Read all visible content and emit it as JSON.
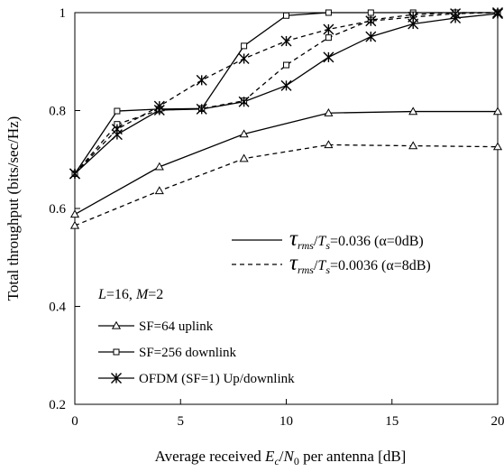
{
  "chart_data": {
    "type": "line",
    "title": "",
    "xlabel_parts": [
      "Average received ",
      "E",
      "c",
      "/",
      "N",
      "0",
      " per antenna [dB]"
    ],
    "ylabel": "Total throughput (bits/sec/Hz)",
    "xlim": [
      0,
      20
    ],
    "ylim": [
      0.2,
      1.0
    ],
    "xticks": [
      "0",
      "5",
      "10",
      "15",
      "20"
    ],
    "yticks": [
      "0.2",
      "0.4",
      "0.6",
      "0.8",
      "1"
    ],
    "grid": false,
    "series": [
      {
        "name": "SF=64 uplink",
        "style": "solid",
        "marker": "triangle",
        "x": [
          0,
          4,
          8,
          12,
          16,
          20
        ],
        "y": [
          0.588,
          0.685,
          0.752,
          0.795,
          0.798,
          0.798
        ]
      },
      {
        "name": "SF=64 uplink",
        "style": "dashed",
        "marker": "triangle",
        "x": [
          0,
          4,
          8,
          12,
          16,
          20
        ],
        "y": [
          0.565,
          0.636,
          0.702,
          0.73,
          0.728,
          0.726
        ]
      },
      {
        "name": "SF=256 downlink",
        "style": "solid",
        "marker": "square",
        "x": [
          0,
          2,
          4,
          6,
          8,
          10,
          12,
          14,
          16,
          18,
          20
        ],
        "y": [
          0.671,
          0.799,
          0.803,
          0.804,
          0.932,
          0.994,
          1.0,
          1.0,
          1.0,
          1.0,
          1.0
        ]
      },
      {
        "name": "SF=256 downlink",
        "style": "dashed",
        "marker": "square",
        "x": [
          0,
          2,
          4,
          6,
          8,
          10,
          12,
          14,
          16,
          18,
          20
        ],
        "y": [
          0.671,
          0.772,
          0.801,
          0.804,
          0.82,
          0.893,
          0.949,
          0.985,
          0.996,
          1.0,
          1.0
        ]
      },
      {
        "name": "OFDM (SF=1) Up/downlink",
        "style": "solid",
        "marker": "star",
        "x": [
          0,
          2,
          4,
          6,
          8,
          10,
          12,
          14,
          16,
          18,
          20
        ],
        "y": [
          0.671,
          0.751,
          0.801,
          0.803,
          0.818,
          0.851,
          0.909,
          0.951,
          0.977,
          0.989,
          0.998
        ]
      },
      {
        "name": "OFDM (SF=1) Up/downlink",
        "style": "dashed",
        "marker": "star",
        "x": [
          0,
          2,
          4,
          6,
          8,
          10,
          12,
          14,
          16,
          18,
          20
        ],
        "y": [
          0.671,
          0.762,
          0.809,
          0.862,
          0.906,
          0.942,
          0.966,
          0.983,
          0.991,
          0.998,
          1.0
        ]
      }
    ],
    "legend_style": [
      {
        "style": "solid",
        "parts": [
          "τ",
          "rms",
          "/",
          "T",
          "s",
          "=0.036 (α=0dB)"
        ]
      },
      {
        "style": "dashed",
        "parts": [
          "τ",
          "rms",
          "/",
          "T",
          "s",
          "=0.0036 (α=8dB)"
        ]
      }
    ],
    "params_label_parts": [
      "L",
      "=16, ",
      "M",
      "=2"
    ],
    "legend_markers": [
      {
        "marker": "triangle",
        "label": "SF=64 uplink"
      },
      {
        "marker": "square",
        "label": "SF=256 downlink"
      },
      {
        "marker": "star",
        "label": "OFDM (SF=1) Up/downlink"
      }
    ],
    "legend_position": "bottom-right"
  }
}
